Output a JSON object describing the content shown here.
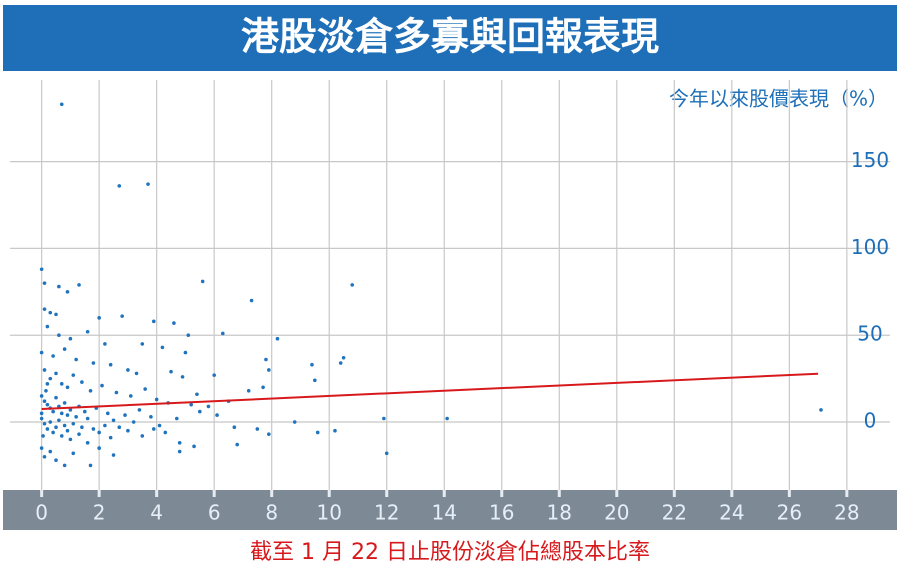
{
  "chart_data": {
    "type": "scatter",
    "title": "港股淡倉多寡與回報表現",
    "y_label": "今年以來股價表現（%）",
    "x_label": "截至 1 月 22 日止股份淡倉佔總股本比率",
    "color": "#1f74bd",
    "x": [
      0,
      0.1,
      0.6,
      1.3,
      0.7,
      2.7,
      3.7,
      5.6,
      10.8,
      7.3,
      0.1,
      0.3,
      0.5,
      0.9,
      2.0,
      2.8,
      3.9,
      4.6,
      5.1,
      6.3,
      8.2,
      0.2,
      0.6,
      1.0,
      1.6,
      2.2,
      3.5,
      4.2,
      5.0,
      7.8,
      10.5,
      10.4,
      9.4,
      7.9,
      6.0,
      9.5,
      7.2,
      7.7,
      5.4,
      0.0,
      0.4,
      0.8,
      1.2,
      1.8,
      2.4,
      3.0,
      3.3,
      4.5,
      4.9,
      0.1,
      0.3,
      0.5,
      0.7,
      0.9,
      1.1,
      1.4,
      1.7,
      2.1,
      2.6,
      3.1,
      3.6,
      4.0,
      4.4,
      5.2,
      5.8,
      6.5,
      0.0,
      0.1,
      0.2,
      0.3,
      0.4,
      0.5,
      0.6,
      0.7,
      0.8,
      0.9,
      1.0,
      1.2,
      1.3,
      1.5,
      1.6,
      1.9,
      2.3,
      2.5,
      2.9,
      3.2,
      3.4,
      3.8,
      4.1,
      4.7,
      5.5,
      6.1,
      0.0,
      0.1,
      0.2,
      0.3,
      0.4,
      0.5,
      0.6,
      0.7,
      0.8,
      0.9,
      1.0,
      1.1,
      1.3,
      1.4,
      1.6,
      1.8,
      2.0,
      2.2,
      2.4,
      2.7,
      3.0,
      3.5,
      3.9,
      4.3,
      4.8,
      5.3,
      6.7,
      7.5,
      7.9,
      8.8,
      9.6,
      10.2,
      0.0,
      0.1,
      0.3,
      0.5,
      0.8,
      1.1,
      1.7,
      2.0,
      2.5,
      4.8,
      6.8,
      12.0,
      11.9,
      14.1,
      27.1,
      0.2,
      0.0,
      0.05,
      0.15
    ],
    "values": [
      88,
      80,
      78,
      79,
      183,
      136,
      137,
      81,
      79,
      70,
      65,
      63,
      62,
      75,
      60,
      61,
      58,
      57,
      50,
      51,
      48,
      55,
      50,
      48,
      52,
      45,
      45,
      43,
      40,
      36,
      37,
      34,
      33,
      30,
      27,
      24,
      18,
      20,
      16,
      40,
      38,
      42,
      36,
      34,
      33,
      30,
      28,
      29,
      26,
      30,
      25,
      28,
      22,
      20,
      27,
      23,
      18,
      21,
      17,
      15,
      19,
      13,
      11,
      10,
      9,
      12,
      15,
      12,
      10,
      8,
      6,
      14,
      9,
      5,
      11,
      4,
      7,
      3,
      9,
      6,
      2,
      8,
      5,
      1,
      4,
      0,
      7,
      3,
      -2,
      2,
      6,
      4,
      2,
      -1,
      -4,
      0,
      -6,
      -3,
      1,
      -8,
      -2,
      -5,
      -10,
      -1,
      -7,
      -3,
      -12,
      -4,
      -6,
      -2,
      -9,
      -3,
      -5,
      -8,
      -4,
      -6,
      -12,
      -14,
      -3,
      -4,
      -7,
      0,
      -6,
      -5,
      -15,
      -20,
      -17,
      -22,
      -25,
      -18,
      -25,
      -15,
      -19,
      -17,
      -13,
      -18,
      2,
      2,
      7,
      22,
      5,
      -8,
      18
    ],
    "trendline": {
      "x": [
        0,
        27
      ],
      "y": [
        7.5,
        27.8
      ],
      "color": "#d7191c"
    },
    "xlim": [
      -1.1,
      29.5
    ],
    "ylim": [
      -38,
      197
    ],
    "xticks": [
      0,
      2,
      4,
      6,
      8,
      10,
      12,
      14,
      16,
      18,
      20,
      22,
      24,
      26,
      28
    ],
    "yticks": [
      0,
      50,
      100,
      150
    ],
    "grid": true
  }
}
